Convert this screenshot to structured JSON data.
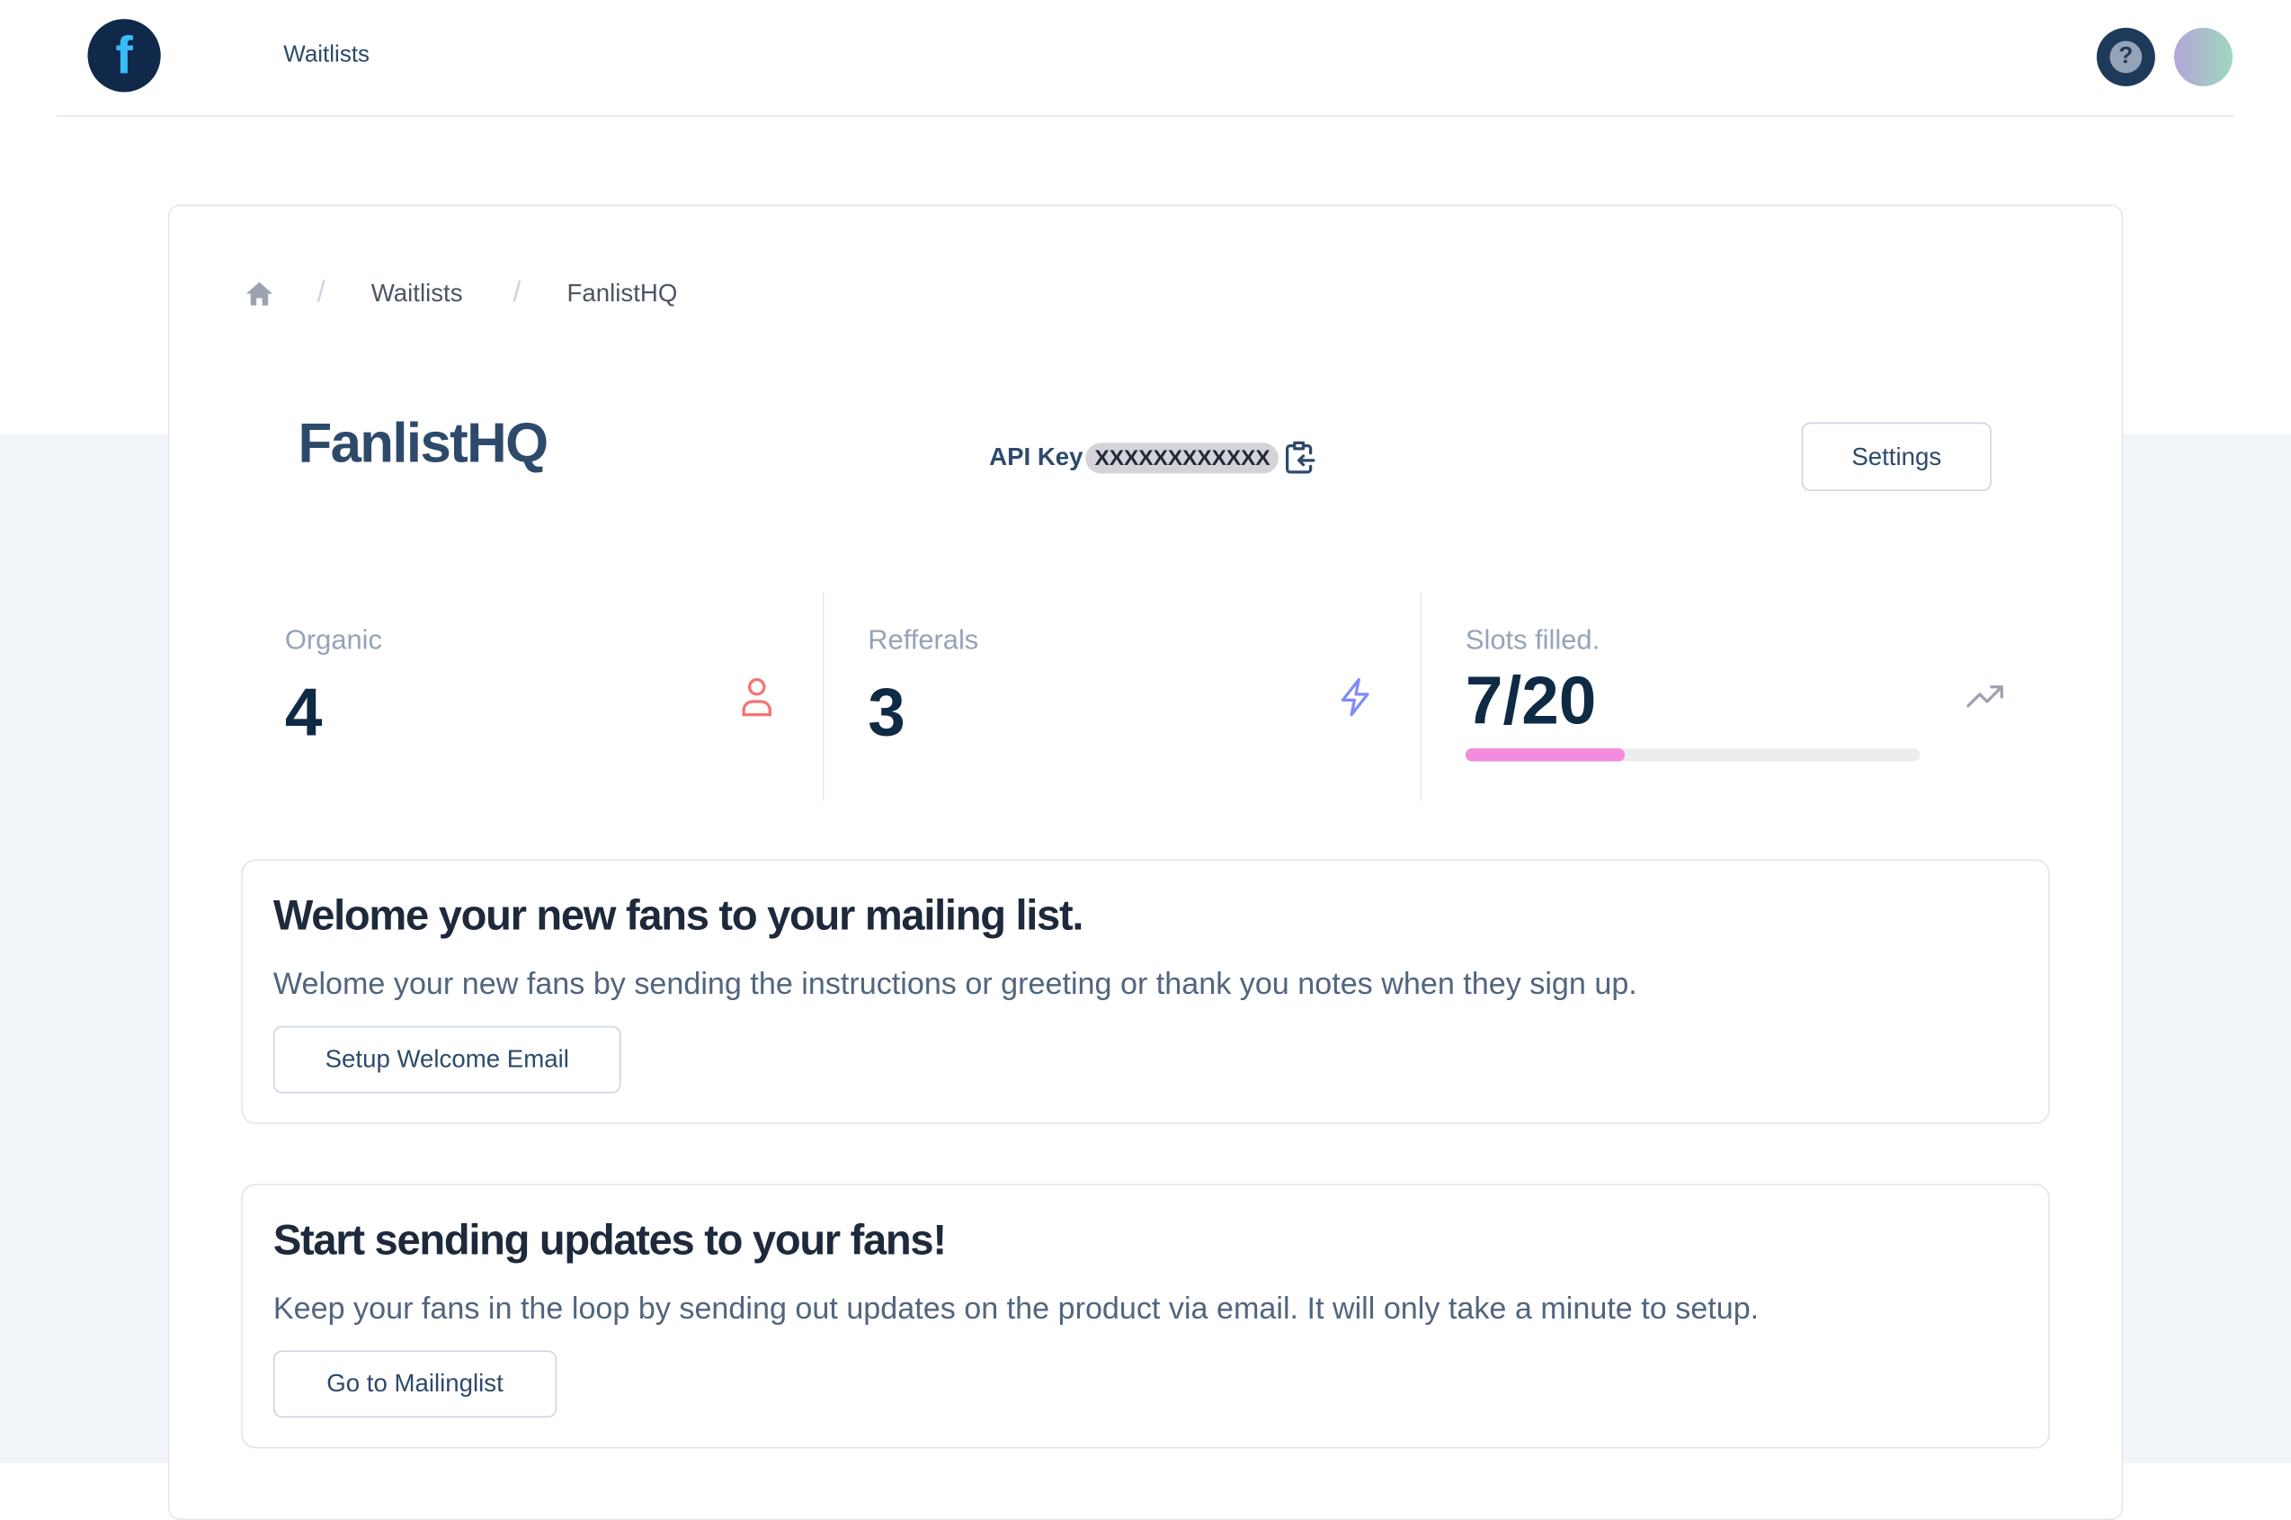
{
  "header": {
    "logo_letter": "f",
    "nav_item": "Waitlists",
    "help_icon": "question-circle-icon",
    "avatar": "user-avatar"
  },
  "breadcrumb": {
    "home_icon": "home-icon",
    "items": [
      "Waitlists",
      "FanlistHQ"
    ],
    "separator": "/"
  },
  "page": {
    "title": "FanlistHQ",
    "api_key_label": "API Key",
    "api_key_value": "XXXXXXXXXXXX",
    "copy_icon": "clipboard-copy-icon",
    "settings_label": "Settings"
  },
  "stats": [
    {
      "label": "Organic",
      "value": "4",
      "icon": "user-icon",
      "icon_color": "#f87171"
    },
    {
      "label": "Refferals",
      "value": "3",
      "icon": "lightning-icon",
      "icon_color": "#818cf8"
    },
    {
      "label": "Slots filled.",
      "value": "7/20",
      "icon": "trending-up-icon",
      "icon_color": "#9ca3af",
      "progress": 0.35,
      "progress_color": "#f48bdc"
    }
  ],
  "cards": [
    {
      "heading": "Welome your new fans to your mailing list.",
      "description": "Welome your new fans by sending the instructions or greeting or thank you notes when they sign up.",
      "button": "Setup Welcome Email"
    },
    {
      "heading": "Start sending updates to your fans!",
      "description": "Keep your fans in the loop by sending out updates on the product via email. It will only take a minute to setup.",
      "button": "Go to Mailinglist"
    }
  ]
}
